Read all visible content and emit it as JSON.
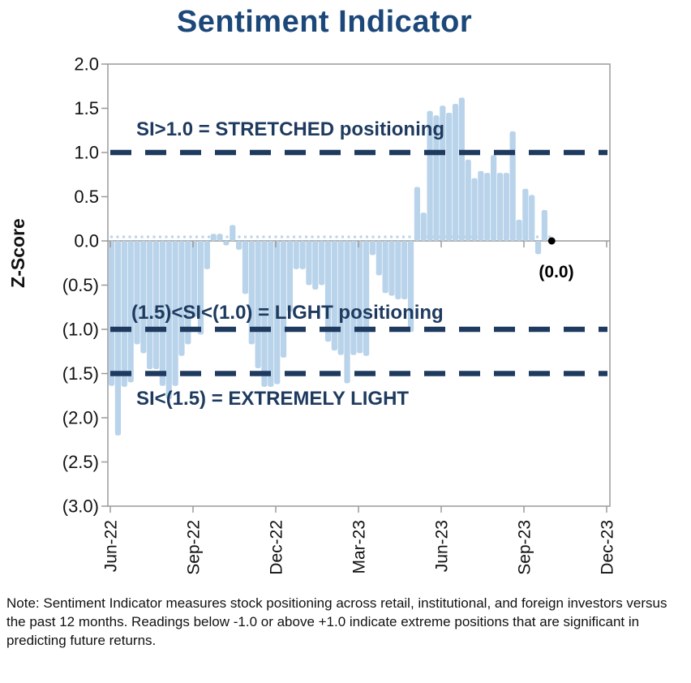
{
  "title": "Sentiment Indicator",
  "note": "Note: Sentiment Indicator measures stock positioning across retail, institutional, and foreign investors versus the past 12 months. Readings below -1.0 or above +1.0 indicate extreme positions that are significant in predicting future returns.",
  "colors": {
    "bar": "#b8d3ea",
    "navy": "#1e3a5f",
    "title_navy": "#1b4779",
    "axis_gray": "#9a9a9a",
    "text_black": "#111111",
    "latest_dot": "#000000"
  },
  "chart_data": {
    "type": "bar",
    "title": "Sentiment Indicator",
    "ylabel": "Z-Score",
    "xlabel": "",
    "ylim": [
      -3.0,
      2.0
    ],
    "y_tick_step": 0.5,
    "y_tick_labels": [
      "2.0",
      "1.5",
      "1.0",
      "0.5",
      "0.0",
      "(0.5)",
      "(1.0)",
      "(1.5)",
      "(2.0)",
      "(2.5)",
      "(3.0)"
    ],
    "x_tick_labels": [
      "Jun-22",
      "Sep-22",
      "Dec-22",
      "Mar-23",
      "Jun-23",
      "Sep-23",
      "Dec-23"
    ],
    "values": [
      -1.64,
      -2.2,
      -1.65,
      -1.6,
      -1.17,
      -1.27,
      -1.45,
      -1.45,
      -1.64,
      -1.79,
      -1.64,
      -1.3,
      -1.17,
      -0.86,
      -1.06,
      -0.32,
      0.08,
      0.08,
      -0.05,
      0.18,
      -0.1,
      -0.6,
      -1.17,
      -1.44,
      -1.65,
      -1.65,
      -1.62,
      -1.32,
      -0.8,
      -0.32,
      -0.32,
      -0.5,
      -0.55,
      -0.5,
      -1.14,
      -1.24,
      -1.29,
      -1.61,
      -1.29,
      -1.27,
      -1.3,
      -0.16,
      -0.39,
      -0.59,
      -0.62,
      -0.66,
      -0.66,
      -1.03,
      0.61,
      0.32,
      1.47,
      1.42,
      1.53,
      1.45,
      1.55,
      1.62,
      0.92,
      0.71,
      0.79,
      0.77,
      0.97,
      0.77,
      0.77,
      1.24,
      0.24,
      0.59,
      0.52,
      -0.15,
      0.35,
      0.0
    ],
    "latest_value": 0.0,
    "latest_value_label": "(0.0)",
    "zero_reference_line_dotted": true,
    "grid": false,
    "thresholds": [
      {
        "value": 1.0,
        "label": "SI>1.0 = STRETCHED positioning"
      },
      {
        "value": -1.0,
        "label": "(1.5)<SI<(1.0) = LIGHT positioning"
      },
      {
        "value": -1.5,
        "label": "SI<(1.5) = EXTREMELY LIGHT"
      }
    ]
  }
}
